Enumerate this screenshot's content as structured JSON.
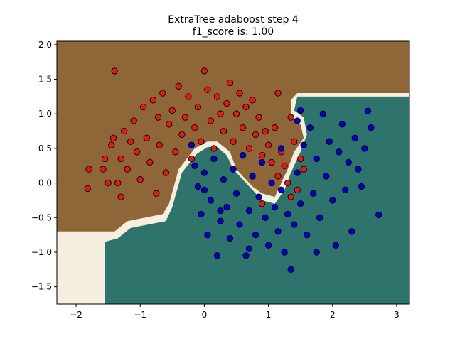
{
  "chart_data": {
    "type": "scatter",
    "title": "ExtraTree adaboost step 4",
    "subtitle": "f1_score is: 1.00",
    "xlabel": "",
    "ylabel": "",
    "xlim": [
      -2.3,
      3.2
    ],
    "ylim": [
      -1.75,
      2.05
    ],
    "x_ticks": [
      -2,
      -1,
      0,
      1,
      2,
      3
    ],
    "y_ticks": [
      -1.5,
      -1.0,
      -0.5,
      0.0,
      0.5,
      1.0,
      1.5,
      2.0
    ],
    "x_tick_labels": [
      "−2",
      "−1",
      "0",
      "1",
      "2",
      "3"
    ],
    "y_tick_labels": [
      "−1.5",
      "−1.0",
      "−0.5",
      "0.0",
      "0.5",
      "1.0",
      "1.5",
      "2.0"
    ],
    "grid": false,
    "legend": "none",
    "background_regions": {
      "colors": {
        "class_red": "#8f6638",
        "class_blue": "#2e746c",
        "boundary": "#f6eedf"
      },
      "red_region_outline": [
        [
          -2.3,
          2.05
        ],
        [
          3.2,
          2.05
        ],
        [
          3.2,
          1.3
        ],
        [
          1.45,
          1.3
        ],
        [
          1.35,
          1.2
        ],
        [
          1.35,
          0.95
        ],
        [
          1.5,
          0.85
        ],
        [
          1.55,
          0.65
        ],
        [
          1.4,
          0.45
        ],
        [
          1.3,
          0.2
        ],
        [
          1.2,
          0.0
        ],
        [
          1.1,
          -0.2
        ],
        [
          0.9,
          -0.15
        ],
        [
          0.75,
          -0.05
        ],
        [
          0.6,
          0.1
        ],
        [
          0.5,
          0.2
        ],
        [
          0.4,
          0.45
        ],
        [
          0.2,
          0.6
        ],
        [
          0.05,
          0.6
        ],
        [
          -0.15,
          0.5
        ],
        [
          -0.4,
          0.2
        ],
        [
          -0.55,
          -0.3
        ],
        [
          -0.65,
          -0.45
        ],
        [
          -1.2,
          -0.55
        ],
        [
          -1.4,
          -0.7
        ],
        [
          -2.3,
          -0.7
        ]
      ],
      "blue_region_outline": [
        [
          3.2,
          1.25
        ],
        [
          1.45,
          1.25
        ],
        [
          1.4,
          1.05
        ],
        [
          1.55,
          0.95
        ],
        [
          1.6,
          0.7
        ],
        [
          1.5,
          0.45
        ],
        [
          1.35,
          0.15
        ],
        [
          1.25,
          -0.1
        ],
        [
          1.1,
          -0.3
        ],
        [
          0.9,
          -0.25
        ],
        [
          0.75,
          -0.1
        ],
        [
          0.6,
          0.05
        ],
        [
          0.45,
          0.2
        ],
        [
          0.35,
          0.4
        ],
        [
          0.2,
          0.52
        ],
        [
          0.05,
          0.52
        ],
        [
          -0.12,
          0.42
        ],
        [
          -0.35,
          0.15
        ],
        [
          -0.5,
          -0.35
        ],
        [
          -0.6,
          -0.55
        ],
        [
          -1.15,
          -0.65
        ],
        [
          -1.35,
          -0.8
        ],
        [
          -1.55,
          -0.85
        ],
        [
          -1.55,
          -1.75
        ],
        [
          3.2,
          -1.75
        ]
      ]
    },
    "series": [
      {
        "color": "#e31a1c",
        "points": [
          [
            -1.4,
            1.62
          ],
          [
            -1.8,
            0.2
          ],
          [
            -1.82,
            -0.08
          ],
          [
            -1.58,
            0.2
          ],
          [
            -1.45,
            0.55
          ],
          [
            -1.42,
            0.65
          ],
          [
            -1.35,
            0.0
          ],
          [
            -1.3,
            0.35
          ],
          [
            -1.25,
            0.75
          ],
          [
            -1.2,
            0.2
          ],
          [
            -1.15,
            0.6
          ],
          [
            -1.1,
            0.9
          ],
          [
            -1.05,
            0.45
          ],
          [
            -1.0,
            0.05
          ],
          [
            -0.95,
            1.1
          ],
          [
            -0.9,
            0.65
          ],
          [
            -0.85,
            0.3
          ],
          [
            -0.8,
            1.2
          ],
          [
            -0.75,
            -0.15
          ],
          [
            -0.72,
            0.95
          ],
          [
            -0.7,
            0.55
          ],
          [
            -0.65,
            1.3
          ],
          [
            -0.6,
            0.15
          ],
          [
            -0.55,
            0.85
          ],
          [
            -0.5,
            1.05
          ],
          [
            -0.45,
            0.45
          ],
          [
            -0.4,
            1.4
          ],
          [
            -0.35,
            0.7
          ],
          [
            -0.3,
            0.95
          ],
          [
            -0.25,
            1.25
          ],
          [
            -0.2,
            0.35
          ],
          [
            -0.15,
            0.8
          ],
          [
            -0.1,
            1.1
          ],
          [
            -0.05,
            0.6
          ],
          [
            0.0,
            1.62
          ],
          [
            0.05,
            1.35
          ],
          [
            0.1,
            0.9
          ],
          [
            0.15,
            0.5
          ],
          [
            0.2,
            1.25
          ],
          [
            0.25,
            1.0
          ],
          [
            0.3,
            0.75
          ],
          [
            0.35,
            1.15
          ],
          [
            0.4,
            1.45
          ],
          [
            0.45,
            0.6
          ],
          [
            0.5,
            1.0
          ],
          [
            0.55,
            1.3
          ],
          [
            0.6,
            0.8
          ],
          [
            0.65,
            1.1
          ],
          [
            0.7,
            0.5
          ],
          [
            0.75,
            1.2
          ],
          [
            0.8,
            0.7
          ],
          [
            0.85,
            0.95
          ],
          [
            0.9,
            0.4
          ],
          [
            0.95,
            0.75
          ],
          [
            1.0,
            0.55
          ],
          [
            1.05,
            0.3
          ],
          [
            1.1,
            0.8
          ],
          [
            1.15,
            0.1
          ],
          [
            1.2,
            0.45
          ],
          [
            1.25,
            0.25
          ],
          [
            1.3,
            0.0
          ],
          [
            1.35,
            -0.2
          ],
          [
            1.4,
            0.6
          ],
          [
            1.45,
            -0.1
          ],
          [
            1.5,
            0.35
          ],
          [
            1.55,
            0.2
          ],
          [
            1.15,
            1.3
          ],
          [
            1.35,
            0.95
          ],
          [
            0.9,
            -0.3
          ],
          [
            -1.5,
            0.0
          ],
          [
            -1.55,
            0.35
          ],
          [
            -1.3,
            -0.2
          ]
        ]
      },
      {
        "color": "#0000cc",
        "points": [
          [
            -0.2,
            0.55
          ],
          [
            -0.15,
            0.25
          ],
          [
            -0.1,
            -0.05
          ],
          [
            -0.05,
            -0.45
          ],
          [
            0.0,
            0.15
          ],
          [
            0.05,
            -0.75
          ],
          [
            0.1,
            -0.25
          ],
          [
            0.15,
            0.35
          ],
          [
            0.2,
            -1.05
          ],
          [
            0.25,
            -0.55
          ],
          [
            0.3,
            0.05
          ],
          [
            0.35,
            -0.35
          ],
          [
            0.4,
            -0.8
          ],
          [
            0.45,
            0.2
          ],
          [
            0.5,
            -0.15
          ],
          [
            0.55,
            -0.6
          ],
          [
            0.6,
            0.4
          ],
          [
            0.65,
            -1.05
          ],
          [
            0.7,
            -0.4
          ],
          [
            0.75,
            0.1
          ],
          [
            0.8,
            -0.75
          ],
          [
            0.85,
            -0.2
          ],
          [
            0.9,
            0.3
          ],
          [
            0.95,
            -0.5
          ],
          [
            1.0,
            -0.9
          ],
          [
            1.05,
            0.0
          ],
          [
            1.1,
            -0.35
          ],
          [
            1.15,
            -0.7
          ],
          [
            1.2,
            -0.1
          ],
          [
            1.25,
            -1.0
          ],
          [
            1.3,
            -0.45
          ],
          [
            1.35,
            -1.25
          ],
          [
            1.4,
            -0.6
          ],
          [
            1.45,
            0.15
          ],
          [
            1.5,
            -0.3
          ],
          [
            1.55,
            0.55
          ],
          [
            1.6,
            -0.75
          ],
          [
            1.65,
            0.8
          ],
          [
            1.7,
            -0.15
          ],
          [
            1.75,
            0.35
          ],
          [
            1.8,
            -0.5
          ],
          [
            1.85,
            1.0
          ],
          [
            1.9,
            0.1
          ],
          [
            1.95,
            0.6
          ],
          [
            2.0,
            -0.25
          ],
          [
            2.05,
            -0.9
          ],
          [
            2.1,
            0.45
          ],
          [
            2.15,
            0.85
          ],
          [
            2.2,
            -0.1
          ],
          [
            2.25,
            0.3
          ],
          [
            2.3,
            -0.7
          ],
          [
            2.35,
            0.65
          ],
          [
            2.4,
            0.2
          ],
          [
            2.45,
            -0.05
          ],
          [
            2.5,
            0.5
          ],
          [
            2.55,
            1.04
          ],
          [
            2.6,
            0.8
          ],
          [
            2.72,
            -0.46
          ],
          [
            1.45,
            0.9
          ],
          [
            1.5,
            1.05
          ],
          [
            1.75,
            -1.0
          ],
          [
            0.25,
            -0.4
          ],
          [
            0.0,
            -0.1
          ],
          [
            1.2,
            0.5
          ],
          [
            0.7,
            -0.95
          ]
        ]
      }
    ]
  }
}
